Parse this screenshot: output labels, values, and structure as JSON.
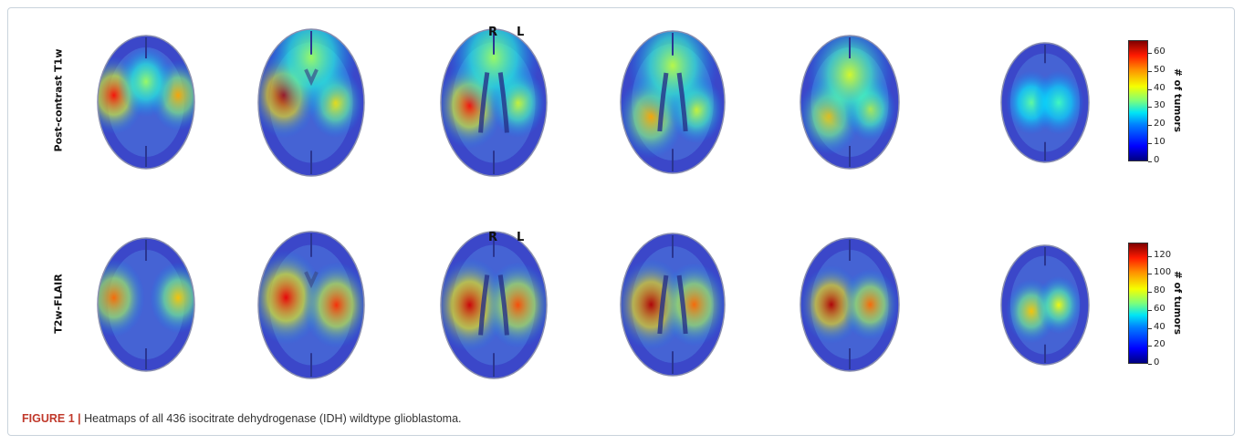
{
  "rows": [
    {
      "label": "Post-contrast T1w",
      "colorbar": {
        "label": "# of tumors",
        "ticks": [
          "60",
          "50",
          "40",
          "30",
          "20",
          "10",
          "0"
        ],
        "max": 67
      },
      "slices": [
        {
          "ventricle": "none",
          "hot": [
            [
              0.18,
              0.45,
              0.22,
              0.85
            ],
            [
              0.82,
              0.45,
              0.2,
              0.6
            ],
            [
              0.5,
              0.35,
              0.2,
              0.3
            ]
          ]
        },
        {
          "ventricle": "small",
          "hot": [
            [
              0.25,
              0.45,
              0.22,
              1.0
            ],
            [
              0.72,
              0.5,
              0.18,
              0.5
            ],
            [
              0.5,
              0.2,
              0.3,
              0.3
            ]
          ]
        },
        {
          "ventricle": "mid",
          "hot": [
            [
              0.28,
              0.52,
              0.22,
              0.85
            ],
            [
              0.72,
              0.5,
              0.18,
              0.4
            ],
            [
              0.5,
              0.2,
              0.3,
              0.3
            ]
          ]
        },
        {
          "ventricle": "mid",
          "hot": [
            [
              0.3,
              0.6,
              0.22,
              0.6
            ],
            [
              0.72,
              0.55,
              0.18,
              0.4
            ],
            [
              0.5,
              0.25,
              0.3,
              0.35
            ]
          ]
        },
        {
          "ventricle": "none",
          "hot": [
            [
              0.3,
              0.6,
              0.22,
              0.55
            ],
            [
              0.7,
              0.55,
              0.18,
              0.4
            ],
            [
              0.5,
              0.3,
              0.3,
              0.4
            ]
          ]
        },
        {
          "ventricle": "none",
          "hot": [
            [
              0.35,
              0.5,
              0.2,
              0.2
            ],
            [
              0.65,
              0.5,
              0.2,
              0.15
            ]
          ]
        }
      ]
    },
    {
      "label": "T2w-FLAIR",
      "colorbar": {
        "label": "# of tumors",
        "ticks": [
          "120",
          "100",
          "80",
          "60",
          "40",
          "20",
          "0"
        ],
        "max": 135
      },
      "slices": [
        {
          "ventricle": "none",
          "hot": [
            [
              0.18,
              0.45,
              0.22,
              0.7
            ],
            [
              0.82,
              0.45,
              0.2,
              0.55
            ]
          ]
        },
        {
          "ventricle": "small",
          "hot": [
            [
              0.27,
              0.45,
              0.24,
              0.9
            ],
            [
              0.73,
              0.5,
              0.22,
              0.8
            ]
          ]
        },
        {
          "ventricle": "mid",
          "hot": [
            [
              0.28,
              0.5,
              0.24,
              0.95
            ],
            [
              0.72,
              0.5,
              0.22,
              0.75
            ]
          ]
        },
        {
          "ventricle": "mid",
          "hot": [
            [
              0.3,
              0.5,
              0.24,
              1.0
            ],
            [
              0.7,
              0.5,
              0.22,
              0.7
            ]
          ]
        },
        {
          "ventricle": "none",
          "hot": [
            [
              0.32,
              0.5,
              0.22,
              1.0
            ],
            [
              0.7,
              0.5,
              0.2,
              0.7
            ]
          ]
        },
        {
          "ventricle": "none",
          "hot": [
            [
              0.35,
              0.55,
              0.2,
              0.55
            ],
            [
              0.65,
              0.5,
              0.18,
              0.45
            ]
          ]
        }
      ]
    }
  ],
  "orientation": {
    "right": "R",
    "left": "L"
  },
  "caption": {
    "figure_label": "FIGURE 1 |",
    "text": " Heatmaps of all 436 isocitrate dehydrogenase (IDH) wildtype glioblastoma."
  }
}
